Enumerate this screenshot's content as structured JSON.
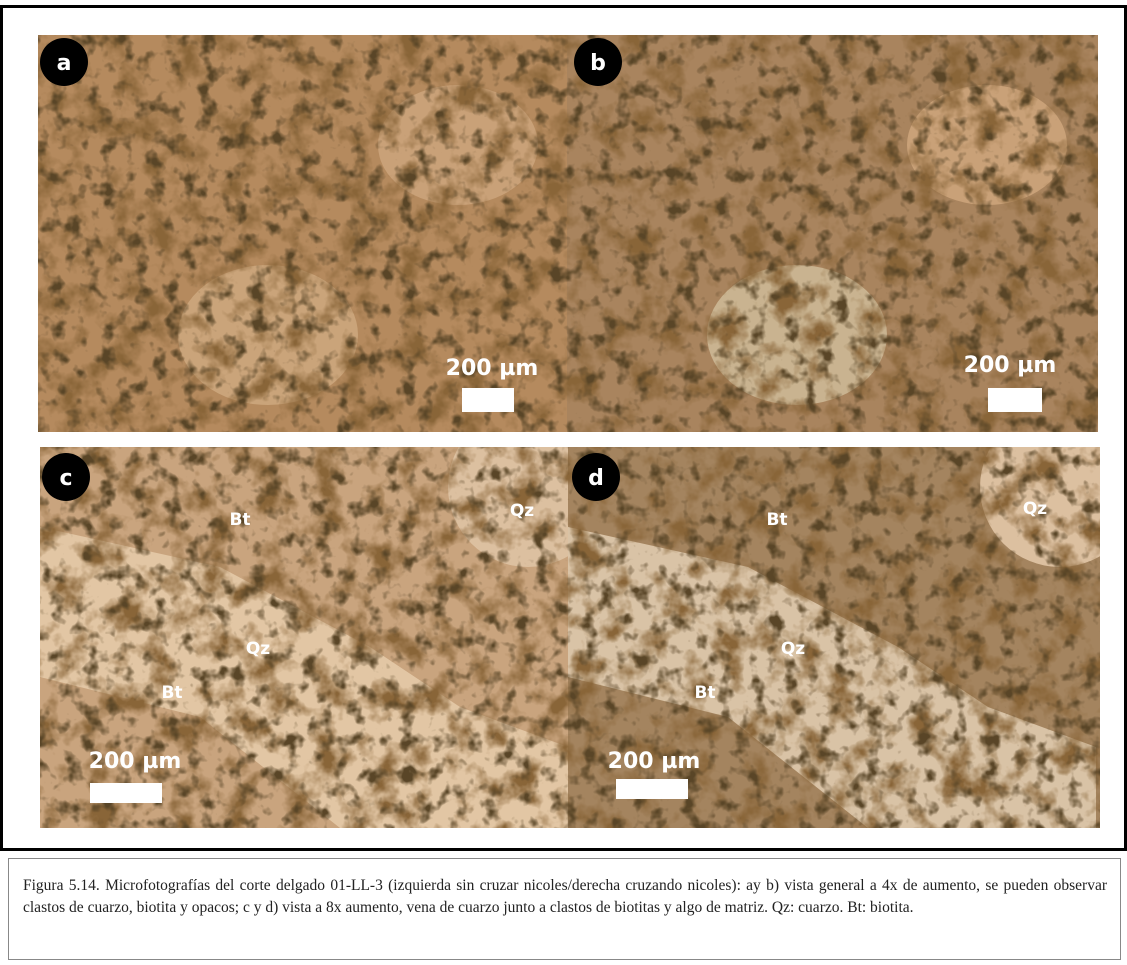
{
  "figure": {
    "panels": [
      {
        "label": "a",
        "scale_bar": "200 µm",
        "annotations": []
      },
      {
        "label": "b",
        "scale_bar": "200 µm",
        "annotations": []
      },
      {
        "label": "c",
        "scale_bar": "200 µm",
        "annotations": [
          "Bt",
          "Qz",
          "Bt",
          "Qz"
        ]
      },
      {
        "label": "d",
        "scale_bar": "200 µm",
        "annotations": [
          "Qz",
          "Bt",
          "Qz",
          "Bt"
        ]
      }
    ]
  },
  "caption": "Figura 5.14. Microfotografías del corte delgado 01-LL-3 (izquierda sin cruzar nicoles/derecha cruzando nicoles): ay b) vista general a 4x de aumento, se pueden observar clastos de cuarzo, biotita y opacos; c y d) vista a 8x aumento, vena de cuarzo junto a clastos de biotitas y algo de matriz. Qz: cuarzo. Bt: biotita."
}
